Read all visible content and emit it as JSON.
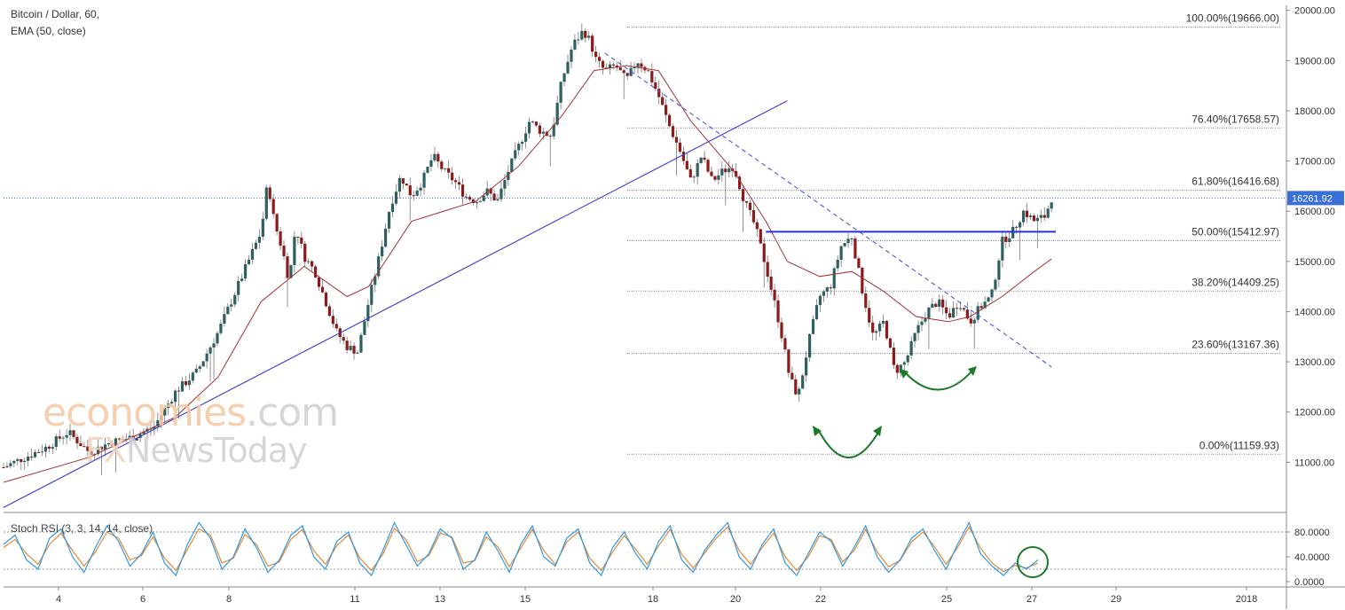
{
  "chart_data": {
    "type": "candlestick",
    "instrument": "Bitcoin / Dollar, 60,",
    "indicator_ema": "EMA (50, close)",
    "indicator_osc": "Stoch RSI (3, 3, 14, 14, close)",
    "current_price": "16261.92",
    "y_axis": {
      "ticks": [
        "20000.00",
        "19000.00",
        "18000.00",
        "17000.00",
        "16000.00",
        "15000.00",
        "14000.00",
        "13000.00",
        "12000.00",
        "11000.00"
      ],
      "ylim": [
        10000,
        20100
      ]
    },
    "x_axis": {
      "ticks": [
        "4",
        "6",
        "8",
        "11",
        "13",
        "15",
        "18",
        "20",
        "22",
        "25",
        "27",
        "29",
        "2018"
      ]
    },
    "osc_axis": {
      "ticks": [
        "80.0000",
        "40.0000",
        "0.0000"
      ],
      "levels": [
        80,
        20
      ]
    },
    "fib_levels": [
      {
        "label": "100.00%(19666.00)",
        "value": 19666.0
      },
      {
        "label": "76.40%(17658.57)",
        "value": 17658.57
      },
      {
        "label": "61.80%(16416.68)",
        "value": 16416.68
      },
      {
        "label": "50.00%(15412.97)",
        "value": 15412.97
      },
      {
        "label": "38.20%(14409.25)",
        "value": 14409.25
      },
      {
        "label": "23.60%(13167.36)",
        "value": 13167.36
      },
      {
        "label": "0.00%(11159.93)",
        "value": 11159.93
      }
    ],
    "price_path": [
      [
        0,
        10900
      ],
      [
        2,
        11300
      ],
      [
        3,
        11600
      ],
      [
        4,
        11200
      ],
      [
        5,
        11400
      ],
      [
        6,
        11500
      ],
      [
        7,
        11700
      ],
      [
        8,
        12400
      ],
      [
        9,
        12800
      ],
      [
        10,
        13600
      ],
      [
        11,
        14600
      ],
      [
        12,
        15600
      ],
      [
        12.3,
        16600
      ],
      [
        12.6,
        15800
      ],
      [
        13,
        15200
      ],
      [
        13.3,
        14600
      ],
      [
        13.6,
        15700
      ],
      [
        14,
        15100
      ],
      [
        14.5,
        14800
      ],
      [
        15,
        14200
      ],
      [
        15.5,
        13600
      ],
      [
        16,
        13300
      ],
      [
        16.5,
        13200
      ],
      [
        17,
        14200
      ],
      [
        17.5,
        15100
      ],
      [
        18,
        16100
      ],
      [
        18.5,
        16700
      ],
      [
        19,
        16300
      ],
      [
        19.5,
        16600
      ],
      [
        20,
        17100
      ],
      [
        20.5,
        16800
      ],
      [
        21,
        16600
      ],
      [
        21.5,
        16300
      ],
      [
        22,
        16200
      ],
      [
        22.5,
        16400
      ],
      [
        23,
        16200
      ],
      [
        23.5,
        16800
      ],
      [
        24,
        17300
      ],
      [
        24.5,
        17800
      ],
      [
        25,
        17600
      ],
      [
        25.5,
        17500
      ],
      [
        26,
        18600
      ],
      [
        26.5,
        19300
      ],
      [
        27,
        19600
      ],
      [
        27.3,
        19400
      ],
      [
        27.6,
        19000
      ],
      [
        28,
        18800
      ],
      [
        28.5,
        18900
      ],
      [
        29,
        18600
      ],
      [
        29.5,
        19000
      ],
      [
        30,
        18800
      ],
      [
        30.5,
        18300
      ],
      [
        31,
        17700
      ],
      [
        31.5,
        17200
      ],
      [
        32,
        16600
      ],
      [
        32.5,
        17100
      ],
      [
        33,
        16600
      ],
      [
        33.5,
        16800
      ],
      [
        34,
        16900
      ],
      [
        34.5,
        16200
      ],
      [
        35,
        15700
      ],
      [
        35.5,
        14900
      ],
      [
        36,
        14000
      ],
      [
        36.3,
        13400
      ],
      [
        36.6,
        12700
      ],
      [
        37,
        12300
      ],
      [
        37.5,
        13400
      ],
      [
        38,
        14300
      ],
      [
        38.5,
        14500
      ],
      [
        39,
        15300
      ],
      [
        39.5,
        15500
      ],
      [
        40,
        14400
      ],
      [
        40.5,
        13500
      ],
      [
        41,
        13800
      ],
      [
        41.5,
        12800
      ],
      [
        42,
        13000
      ],
      [
        42.5,
        13600
      ],
      [
        43,
        14000
      ],
      [
        43.5,
        14200
      ],
      [
        44,
        13900
      ],
      [
        44.5,
        14200
      ],
      [
        45,
        13800
      ],
      [
        45.5,
        14100
      ],
      [
        46,
        14300
      ],
      [
        46.5,
        15400
      ],
      [
        47,
        15600
      ],
      [
        47.5,
        16000
      ],
      [
        48,
        15800
      ],
      [
        48.5,
        15900
      ],
      [
        48.8,
        16262
      ]
    ],
    "ema_path": [
      [
        0,
        10600
      ],
      [
        4,
        11100
      ],
      [
        8,
        11900
      ],
      [
        10,
        12700
      ],
      [
        12,
        14200
      ],
      [
        14,
        14900
      ],
      [
        16,
        14300
      ],
      [
        17,
        14500
      ],
      [
        19,
        15800
      ],
      [
        22,
        16200
      ],
      [
        24,
        16900
      ],
      [
        26,
        17900
      ],
      [
        27.5,
        18800
      ],
      [
        29,
        18900
      ],
      [
        30.5,
        18800
      ],
      [
        32,
        17800
      ],
      [
        34,
        16800
      ],
      [
        35.5,
        15800
      ],
      [
        36.5,
        15000
      ],
      [
        38,
        14700
      ],
      [
        39.5,
        14800
      ],
      [
        41,
        14400
      ],
      [
        42.5,
        13900
      ],
      [
        44,
        13800
      ],
      [
        45,
        13900
      ],
      [
        46.5,
        14300
      ],
      [
        48,
        14800
      ],
      [
        48.8,
        15050
      ]
    ],
    "osc_k": [
      60,
      75,
      35,
      20,
      70,
      85,
      40,
      15,
      55,
      90,
      65,
      25,
      45,
      80,
      30,
      10,
      60,
      95,
      70,
      20,
      40,
      85,
      55,
      15,
      35,
      75,
      90,
      40,
      20,
      65,
      80,
      30,
      10,
      50,
      95,
      60,
      25,
      45,
      85,
      70,
      20,
      35,
      80,
      50,
      15,
      60,
      90,
      40,
      25,
      70,
      85,
      30,
      10,
      55,
      80,
      45,
      20,
      65,
      90,
      35,
      15,
      50,
      75,
      95,
      40,
      20,
      60,
      85,
      30,
      10,
      45,
      80,
      65,
      25,
      55,
      90,
      40,
      15,
      35,
      70,
      85,
      50,
      20,
      60,
      95,
      45,
      25,
      10,
      30,
      20,
      35
    ],
    "osc_d": [
      55,
      68,
      45,
      28,
      60,
      78,
      50,
      25,
      48,
      80,
      70,
      35,
      42,
      72,
      38,
      18,
      52,
      85,
      75,
      30,
      38,
      76,
      60,
      25,
      32,
      68,
      84,
      50,
      28,
      58,
      75,
      38,
      18,
      44,
      86,
      68,
      32,
      42,
      78,
      72,
      30,
      34,
      72,
      56,
      24,
      54,
      84,
      50,
      28,
      64,
      80,
      38,
      18,
      48,
      74,
      52,
      28,
      58,
      84,
      44,
      22,
      46,
      70,
      88,
      50,
      28,
      55,
      78,
      40,
      18,
      40,
      74,
      68,
      32,
      50,
      84,
      48,
      24,
      34,
      64,
      80,
      56,
      28,
      55,
      88,
      54,
      30,
      16,
      26,
      22,
      30
    ],
    "trendlines": [
      {
        "name": "ascending",
        "from": [
          0,
          10100
        ],
        "to": [
          36.5,
          18200
        ]
      },
      {
        "name": "descending",
        "from": [
          28,
          19150
        ],
        "to": [
          48.8,
          12900
        ]
      },
      {
        "name": "neckline",
        "from": [
          35.5,
          15590
        ],
        "to": [
          49,
          15590
        ]
      }
    ],
    "annotations": [
      "left-arc",
      "right-arc",
      "osc-circle"
    ],
    "colors": {
      "up": "#2f5f5f",
      "down": "#8b1a1a",
      "ema": "#a33333",
      "trend": "#3a3ad0",
      "neckline": "#2233dd",
      "arrows": "#1d7a2a",
      "stoch_k": "#3399dd",
      "stoch_d": "#e08a3a",
      "price_tag": "#3a6fd8"
    }
  }
}
